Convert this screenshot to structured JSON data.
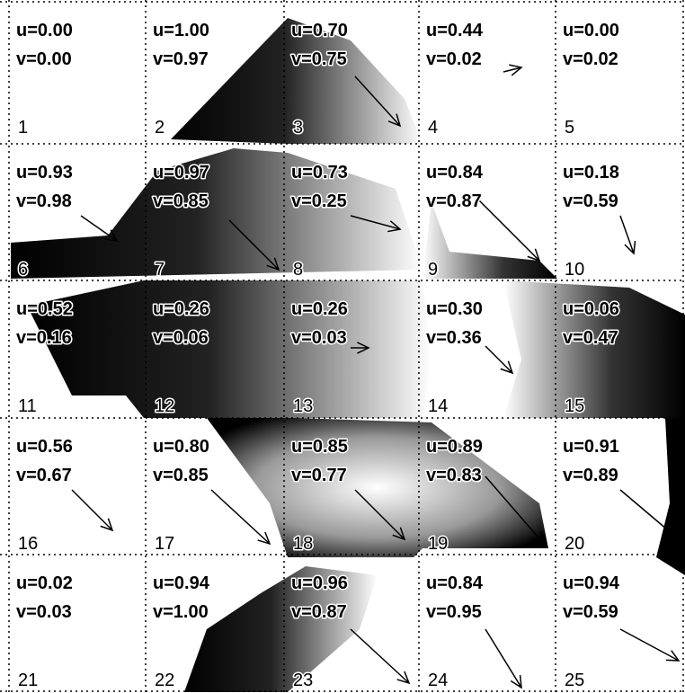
{
  "cells": [
    {
      "u": "u=0.00",
      "v": "v=0.00",
      "index": "1"
    },
    {
      "u": "u=1.00",
      "v": "v=0.97",
      "index": "2"
    },
    {
      "u": "u=0.70",
      "v": "v=0.75",
      "index": "3"
    },
    {
      "u": "u=0.44",
      "v": "v=0.02",
      "index": "4"
    },
    {
      "u": "u=0.00",
      "v": "v=0.02",
      "index": "5"
    },
    {
      "u": "u=0.93",
      "v": "v=0.98",
      "index": "6"
    },
    {
      "u": "u=0.97",
      "v": "v=0.85",
      "index": "7"
    },
    {
      "u": "u=0.73",
      "v": "v=0.25",
      "index": "8"
    },
    {
      "u": "u=0.84",
      "v": "v=0.87",
      "index": "9"
    },
    {
      "u": "u=0.18",
      "v": "v=0.59",
      "index": "10"
    },
    {
      "u": "u=0.52",
      "v": "v=0.16",
      "index": "11"
    },
    {
      "u": "u=0.26",
      "v": "v=0.06",
      "index": "12"
    },
    {
      "u": "u=0.26",
      "v": "v=0.03",
      "index": "13"
    },
    {
      "u": "u=0.30",
      "v": "v=0.36",
      "index": "14"
    },
    {
      "u": "u=0.06",
      "v": "v=0.47",
      "index": "15"
    },
    {
      "u": "u=0.56",
      "v": "v=0.67",
      "index": "16"
    },
    {
      "u": "u=0.80",
      "v": "v=0.85",
      "index": "17"
    },
    {
      "u": "u=0.85",
      "v": "v=0.77",
      "index": "18"
    },
    {
      "u": "u=0.89",
      "v": "v=0.83",
      "index": "19"
    },
    {
      "u": "u=0.91",
      "v": "v=0.89",
      "index": "20"
    },
    {
      "u": "u=0.02",
      "v": "v=0.03",
      "index": "21"
    },
    {
      "u": "u=0.94",
      "v": "v=1.00",
      "index": "22"
    },
    {
      "u": "u=0.96",
      "v": "v=0.87",
      "index": "23"
    },
    {
      "u": "u=0.84",
      "v": "v=0.95",
      "index": "24"
    },
    {
      "u": "u=0.94",
      "v": "v=0.59",
      "index": "25"
    }
  ]
}
